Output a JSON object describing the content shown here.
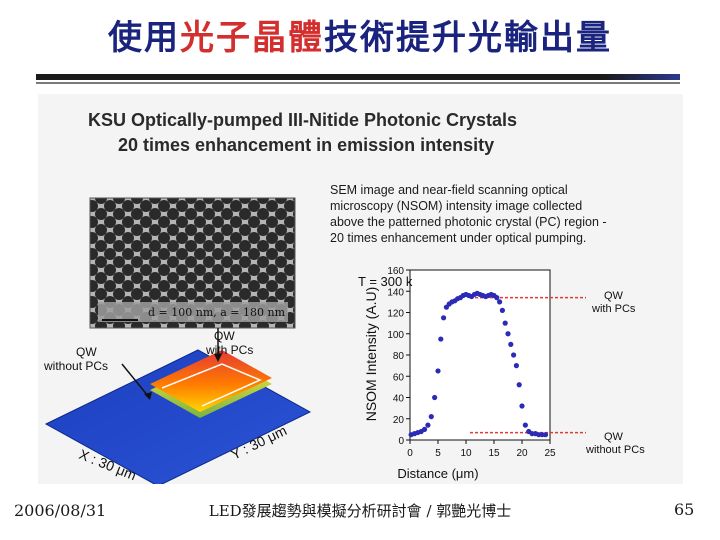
{
  "slide": {
    "title_part1": "使用",
    "title_part2": "光子晶體",
    "title_part3": "技術提升光輸出量",
    "colors": {
      "title_blue": "#1a237e",
      "title_red": "#d32f2f",
      "plot_points": "#2b2bb8",
      "ref_line": "#e53935"
    }
  },
  "figure": {
    "heading_line1": "KSU Optically-pumped III-Nitide Photonic Crystals",
    "heading_line2": "20 times enhancement in emission intensity",
    "desc_line1": "SEM image and near-field scanning optical",
    "desc_line2": "microscopy (NSOM) intensity image collected",
    "desc_line3": "above the patterned photonic crystal (PC) region -",
    "desc_line4": "20 times enhancement under optical pumping.",
    "sem_caption": "d = 100 nm, a = 180 nm",
    "qw_without_line1": "QW",
    "qw_without_line2": "without PCs",
    "qw_with_line1": "QW",
    "qw_with_line2": "with PCs",
    "x_axis_label": "X : 30 μm",
    "y_axis_label": "Y : 30 μm",
    "right_qw_with_1": "QW",
    "right_qw_with_2": "with PCs",
    "right_qw_without_1": "QW",
    "right_qw_without_2": "without PCs"
  },
  "chart_data": {
    "type": "scatter",
    "annotation": "T = 300 k",
    "xlabel": "Distance (μm)",
    "ylabel": "NSOM Intensity (A.U)",
    "xlim": [
      0,
      25
    ],
    "ylim": [
      0,
      160
    ],
    "x_ticks": [
      "0",
      "5",
      "10",
      "15",
      "20",
      "25"
    ],
    "y_ticks": [
      "0",
      "20",
      "40",
      "60",
      "80",
      "100",
      "120",
      "140",
      "160"
    ],
    "reference_lines": [
      134,
      7
    ],
    "x": [
      0.2,
      0.8,
      1.4,
      2.0,
      2.6,
      3.2,
      3.8,
      4.4,
      5.0,
      5.5,
      6.0,
      6.5,
      7.0,
      7.5,
      8.0,
      8.5,
      9.0,
      9.5,
      10.0,
      10.5,
      11.0,
      11.5,
      12.0,
      12.5,
      13.0,
      13.5,
      14.0,
      14.5,
      15.0,
      15.5,
      16.0,
      16.5,
      17.0,
      17.5,
      18.0,
      18.5,
      19.0,
      19.5,
      20.0,
      20.6,
      21.2,
      21.8,
      22.4,
      23.0,
      23.6,
      24.2
    ],
    "y": [
      5,
      6,
      7,
      8,
      10,
      14,
      22,
      40,
      65,
      95,
      115,
      125,
      128,
      130,
      131,
      133,
      134,
      136,
      137,
      136,
      135,
      137,
      138,
      137,
      136,
      135,
      136,
      137,
      136,
      134,
      130,
      122,
      110,
      100,
      90,
      80,
      70,
      52,
      32,
      14,
      8,
      6,
      6,
      5,
      5,
      5
    ]
  },
  "footer": {
    "date": "2006/08/31",
    "center": "LED發展趨勢與模擬分析研討會 / 郭艷光博士",
    "page": "65"
  }
}
